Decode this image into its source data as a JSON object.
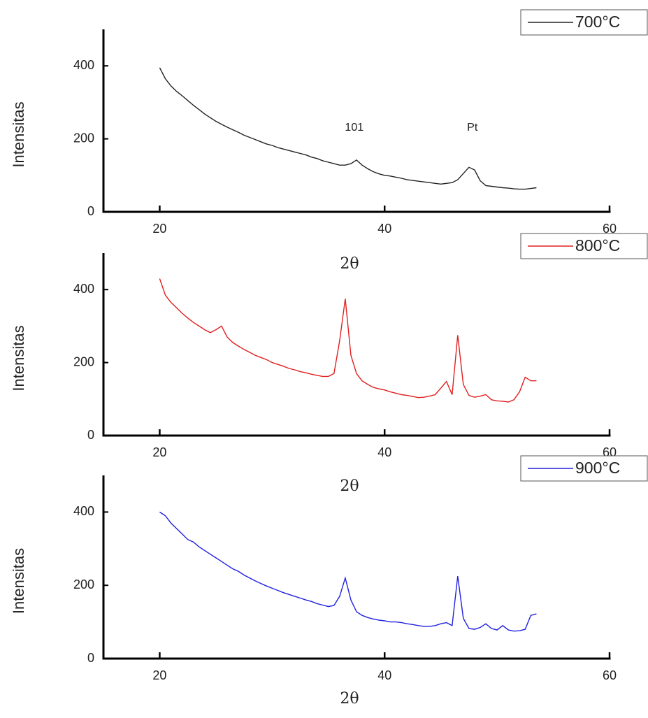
{
  "chart_data": [
    {
      "type": "line",
      "xlabel": "2θ",
      "ylabel": "Intensitas",
      "xlim": [
        15,
        60
      ],
      "ylim": [
        0,
        500
      ],
      "xticks": [
        20,
        40,
        60
      ],
      "yticks": [
        0,
        200,
        400
      ],
      "legend": "upper right",
      "annotations": [
        {
          "text": "101",
          "x": 37.3,
          "y": 230
        },
        {
          "text": "Pt",
          "x": 47.8,
          "y": 230
        }
      ],
      "x": [
        20,
        20.5,
        21,
        21.5,
        22,
        22.5,
        23,
        23.5,
        24,
        24.5,
        25,
        25.5,
        26,
        26.5,
        27,
        27.5,
        28,
        28.5,
        29,
        29.5,
        30,
        30.5,
        31,
        31.5,
        32,
        32.5,
        33,
        33.5,
        34,
        34.5,
        35,
        35.5,
        36,
        36.5,
        37,
        37.5,
        38,
        38.5,
        39,
        39.5,
        40,
        40.5,
        41,
        41.5,
        42,
        42.5,
        43,
        43.5,
        44,
        44.5,
        45,
        45.5,
        46,
        46.5,
        47,
        47.5,
        48,
        48.5,
        49,
        49.5,
        50,
        50.5,
        51,
        51.5,
        52,
        52.5,
        53,
        53.5
      ],
      "series": [
        {
          "name": "700°C",
          "color": "#222222",
          "values": [
            395,
            365,
            345,
            330,
            318,
            305,
            292,
            280,
            268,
            258,
            248,
            240,
            232,
            225,
            218,
            210,
            204,
            198,
            192,
            186,
            182,
            176,
            172,
            168,
            164,
            160,
            156,
            150,
            146,
            140,
            136,
            132,
            128,
            128,
            132,
            142,
            128,
            118,
            110,
            104,
            100,
            98,
            95,
            92,
            88,
            86,
            84,
            82,
            80,
            78,
            76,
            78,
            80,
            88,
            105,
            122,
            115,
            85,
            72,
            70,
            68,
            66,
            65,
            63,
            62,
            62,
            64,
            66
          ]
        }
      ]
    },
    {
      "type": "line",
      "xlabel": "2θ",
      "ylabel": "Intensitas",
      "xlim": [
        15,
        60
      ],
      "ylim": [
        0,
        500
      ],
      "xticks": [
        20,
        40,
        60
      ],
      "yticks": [
        0,
        200,
        400
      ],
      "legend": "upper right",
      "x": [
        20,
        20.5,
        21,
        21.5,
        22,
        22.5,
        23,
        23.5,
        24,
        24.5,
        25,
        25.5,
        26,
        26.5,
        27,
        27.5,
        28,
        28.5,
        29,
        29.5,
        30,
        30.5,
        31,
        31.5,
        32,
        32.5,
        33,
        33.5,
        34,
        34.5,
        35,
        35.5,
        36,
        36.5,
        37,
        37.5,
        38,
        38.5,
        39,
        39.5,
        40,
        40.5,
        41,
        41.5,
        42,
        42.5,
        43,
        43.5,
        44,
        44.5,
        45,
        45.5,
        46,
        46.5,
        47,
        47.5,
        48,
        48.5,
        49,
        49.5,
        50,
        50.5,
        51,
        51.5,
        52,
        52.5,
        53,
        53.5
      ],
      "series": [
        {
          "name": "800°C",
          "color": "#e02020",
          "values": [
            430,
            385,
            365,
            350,
            335,
            322,
            310,
            300,
            290,
            282,
            290,
            300,
            270,
            255,
            245,
            236,
            228,
            220,
            214,
            208,
            200,
            195,
            190,
            184,
            180,
            175,
            172,
            168,
            165,
            162,
            162,
            170,
            260,
            375,
            220,
            170,
            150,
            140,
            132,
            128,
            125,
            120,
            116,
            112,
            110,
            107,
            104,
            105,
            108,
            112,
            130,
            148,
            112,
            275,
            140,
            110,
            105,
            108,
            112,
            98,
            95,
            94,
            92,
            98,
            120,
            160,
            150,
            150
          ]
        }
      ]
    },
    {
      "type": "line",
      "xlabel": "2θ",
      "ylabel": "Intensitas",
      "xlim": [
        15,
        60
      ],
      "ylim": [
        0,
        500
      ],
      "xticks": [
        20,
        40,
        60
      ],
      "yticks": [
        0,
        200,
        400
      ],
      "legend": "upper right",
      "x": [
        20,
        20.5,
        21,
        21.5,
        22,
        22.5,
        23,
        23.5,
        24,
        24.5,
        25,
        25.5,
        26,
        26.5,
        27,
        27.5,
        28,
        28.5,
        29,
        29.5,
        30,
        30.5,
        31,
        31.5,
        32,
        32.5,
        33,
        33.5,
        34,
        34.5,
        35,
        35.5,
        36,
        36.5,
        37,
        37.5,
        38,
        38.5,
        39,
        39.5,
        40,
        40.5,
        41,
        41.5,
        42,
        42.5,
        43,
        43.5,
        44,
        44.5,
        45,
        45.5,
        46,
        46.5,
        47,
        47.5,
        48,
        48.5,
        49,
        49.5,
        50,
        50.5,
        51,
        51.5,
        52,
        52.5,
        53,
        53.5
      ],
      "series": [
        {
          "name": "900°C",
          "color": "#2020e0",
          "values": [
            400,
            390,
            370,
            355,
            340,
            325,
            318,
            305,
            295,
            285,
            275,
            265,
            255,
            245,
            238,
            228,
            220,
            212,
            205,
            198,
            192,
            186,
            180,
            175,
            170,
            165,
            160,
            156,
            150,
            146,
            142,
            145,
            170,
            220,
            160,
            128,
            118,
            112,
            108,
            105,
            103,
            100,
            100,
            98,
            95,
            93,
            90,
            88,
            88,
            90,
            95,
            98,
            90,
            225,
            110,
            82,
            80,
            85,
            95,
            82,
            78,
            90,
            78,
            75,
            76,
            80,
            118,
            122
          ]
        }
      ]
    }
  ]
}
